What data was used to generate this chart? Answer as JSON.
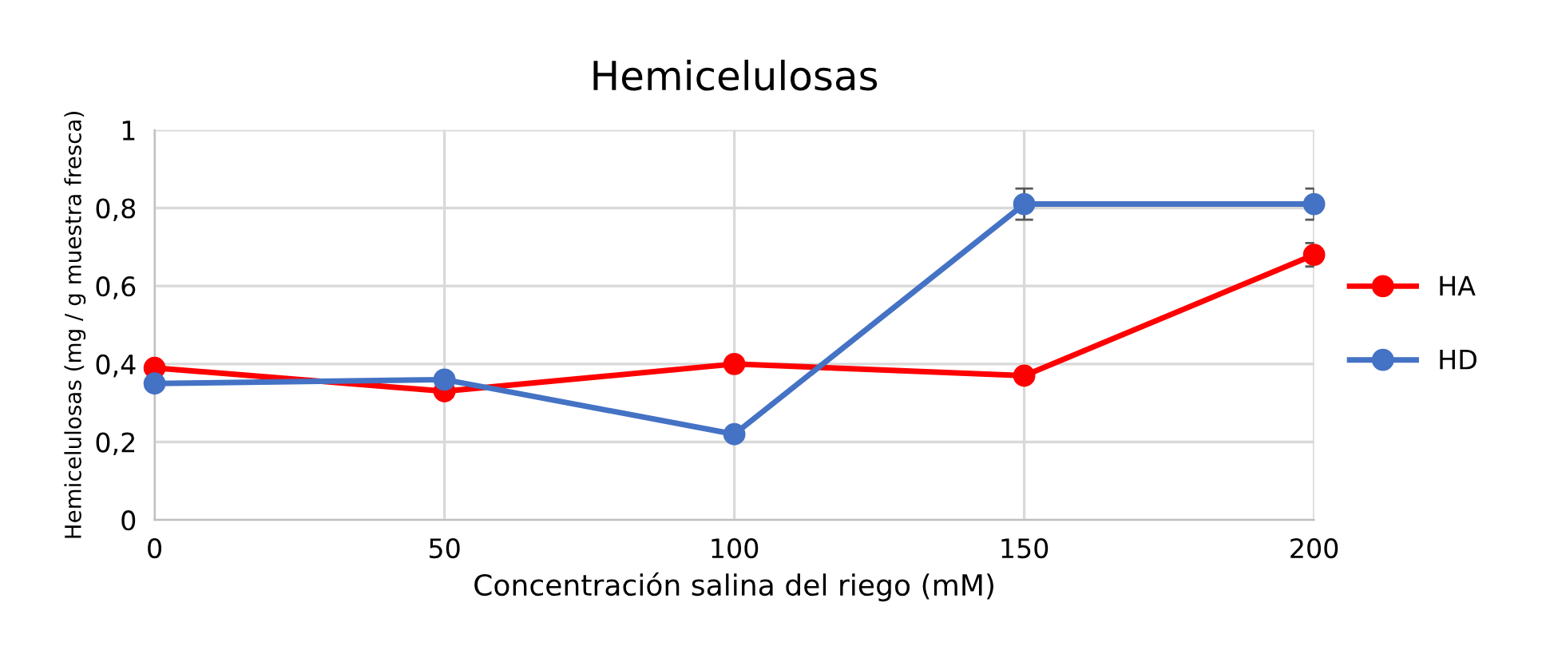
{
  "chart_data": {
    "type": "line",
    "title": "Hemicelulosas",
    "xlabel": "Concentración salina del riego (mM)",
    "ylabel": "Hemicelulosas (mg / g muestra fresca)",
    "x": [
      0,
      50,
      100,
      150,
      200
    ],
    "series": [
      {
        "name": "HA",
        "color": "#ff0000",
        "values": [
          0.39,
          0.33,
          0.4,
          0.37,
          0.68
        ],
        "errors": [
          null,
          null,
          null,
          null,
          0.03
        ]
      },
      {
        "name": "HD",
        "color": "#4472c4",
        "values": [
          0.35,
          0.36,
          0.22,
          0.81,
          0.81
        ],
        "errors": [
          null,
          null,
          null,
          0.04,
          0.04
        ]
      }
    ],
    "xlim": [
      0,
      200
    ],
    "xticks": [
      0,
      50,
      100,
      150,
      200
    ],
    "ylim": [
      0,
      1
    ],
    "yticks": [
      0,
      {
        "value": 0.2,
        "label": "0,2"
      },
      {
        "value": 0.4,
        "label": "0,4"
      },
      {
        "value": 0.6,
        "label": "0,6"
      },
      {
        "value": 0.8,
        "label": "0,8"
      },
      1
    ],
    "grid": true,
    "legend": "right",
    "marker": "circle",
    "line_style": "solid"
  }
}
